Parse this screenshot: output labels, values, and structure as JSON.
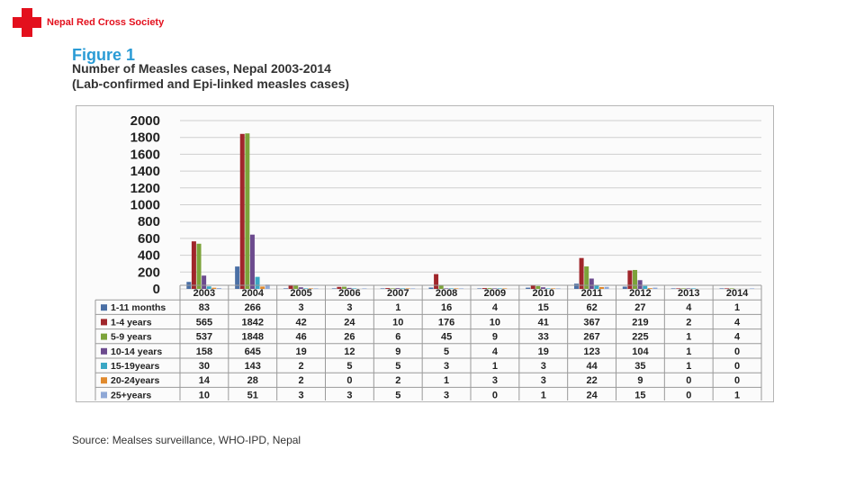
{
  "header": {
    "org_name": "Nepal Red Cross Society",
    "cross_color": "#e3101d"
  },
  "figure": {
    "label": "Figure 1",
    "label_color": "#2a9bd5",
    "title_line1": "Number of Measles cases, Nepal 2003-2014",
    "title_line2": "(Lab-confirmed and Epi-linked measles cases)"
  },
  "source": "Source: Mealses surveillance, WHO-IPD, Nepal",
  "chart_data": {
    "type": "bar",
    "categories": [
      "2003",
      "2004",
      "2005",
      "2006",
      "2007",
      "2008",
      "2009",
      "2010",
      "2011",
      "2012",
      "2013",
      "2014"
    ],
    "ylim": [
      0,
      2000
    ],
    "yticks": [
      0,
      200,
      400,
      600,
      800,
      1000,
      1200,
      1400,
      1600,
      1800,
      2000
    ],
    "grid": true,
    "legend": "data-table",
    "series": [
      {
        "name": "1-11 months",
        "color": "#4a6fa5",
        "values": [
          83,
          266,
          3,
          3,
          1,
          16,
          4,
          15,
          62,
          27,
          4,
          1
        ]
      },
      {
        "name": "1-4 years",
        "color": "#a0262b",
        "values": [
          565,
          1842,
          42,
          24,
          10,
          176,
          10,
          41,
          367,
          219,
          2,
          4
        ]
      },
      {
        "name": "5-9 years",
        "color": "#7ca33a",
        "values": [
          537,
          1848,
          46,
          26,
          6,
          45,
          9,
          33,
          267,
          225,
          1,
          4
        ]
      },
      {
        "name": "10-14 years",
        "color": "#6c4b8e",
        "values": [
          158,
          645,
          19,
          12,
          9,
          5,
          4,
          19,
          123,
          104,
          1,
          0
        ]
      },
      {
        "name": "15-19years",
        "color": "#3aa7c4",
        "values": [
          30,
          143,
          2,
          5,
          5,
          3,
          1,
          3,
          44,
          35,
          1,
          0
        ]
      },
      {
        "name": "20-24years",
        "color": "#e08a2e",
        "values": [
          14,
          28,
          2,
          0,
          2,
          1,
          3,
          3,
          22,
          9,
          0,
          0
        ]
      },
      {
        "name": "25+years",
        "color": "#8fa8d6",
        "values": [
          10,
          51,
          3,
          3,
          5,
          3,
          0,
          1,
          24,
          15,
          0,
          1
        ]
      }
    ]
  }
}
